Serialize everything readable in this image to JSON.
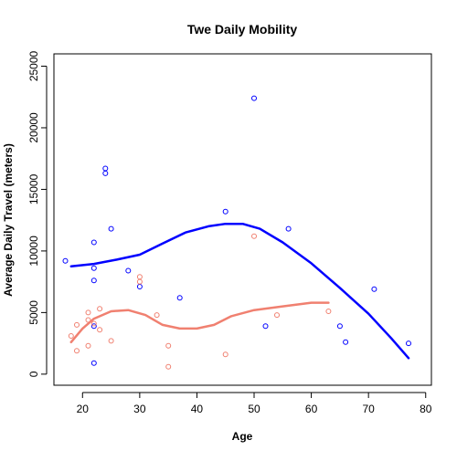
{
  "chart_data": {
    "type": "scatter",
    "title": "Twe Daily Mobility",
    "xlabel": "Age",
    "ylabel": "Average Daily Travel (meters)",
    "xlim": [
      15,
      81
    ],
    "ylim": [
      -900,
      26000
    ],
    "x_ticks": [
      20,
      30,
      40,
      50,
      60,
      70,
      80
    ],
    "y_ticks": [
      0,
      5000,
      10000,
      15000,
      20000,
      25000
    ],
    "grid": false,
    "legend": "none",
    "series": [
      {
        "color": "#0000ff",
        "marker": "open-circle",
        "points": [
          [
            17,
            9200
          ],
          [
            22,
            10700
          ],
          [
            22,
            8600
          ],
          [
            22,
            7600
          ],
          [
            22,
            3900
          ],
          [
            22,
            900
          ],
          [
            24,
            16300
          ],
          [
            24,
            16700
          ],
          [
            25,
            11800
          ],
          [
            28,
            8400
          ],
          [
            30,
            7100
          ],
          [
            37,
            6200
          ],
          [
            45,
            13200
          ],
          [
            50,
            22400
          ],
          [
            52,
            3900
          ],
          [
            56,
            11800
          ],
          [
            65,
            3900
          ],
          [
            66,
            2600
          ],
          [
            71,
            6900
          ],
          [
            77,
            2500
          ]
        ],
        "smooth": [
          [
            18,
            8750
          ],
          [
            22,
            8950
          ],
          [
            26,
            9300
          ],
          [
            30,
            9700
          ],
          [
            34,
            10600
          ],
          [
            38,
            11500
          ],
          [
            42,
            12000
          ],
          [
            45,
            12200
          ],
          [
            48,
            12200
          ],
          [
            51,
            11800
          ],
          [
            55,
            10700
          ],
          [
            60,
            9000
          ],
          [
            65,
            7000
          ],
          [
            70,
            4900
          ],
          [
            74,
            2900
          ],
          [
            77,
            1300
          ]
        ]
      },
      {
        "color": "#f08070",
        "marker": "open-circle",
        "points": [
          [
            18,
            3100
          ],
          [
            19,
            4000
          ],
          [
            19,
            1900
          ],
          [
            21,
            5000
          ],
          [
            21,
            4400
          ],
          [
            21,
            2300
          ],
          [
            22,
            4100
          ],
          [
            23,
            5300
          ],
          [
            23,
            3600
          ],
          [
            25,
            2700
          ],
          [
            30,
            7900
          ],
          [
            30,
            7500
          ],
          [
            33,
            4800
          ],
          [
            35,
            2300
          ],
          [
            35,
            600
          ],
          [
            45,
            1600
          ],
          [
            50,
            11200
          ],
          [
            54,
            4800
          ],
          [
            63,
            5100
          ]
        ],
        "smooth": [
          [
            18,
            2600
          ],
          [
            20,
            3700
          ],
          [
            22,
            4500
          ],
          [
            25,
            5100
          ],
          [
            28,
            5200
          ],
          [
            31,
            4800
          ],
          [
            34,
            4000
          ],
          [
            37,
            3700
          ],
          [
            40,
            3700
          ],
          [
            43,
            4000
          ],
          [
            46,
            4700
          ],
          [
            50,
            5200
          ],
          [
            55,
            5500
          ],
          [
            60,
            5800
          ],
          [
            63,
            5800
          ]
        ]
      }
    ]
  }
}
